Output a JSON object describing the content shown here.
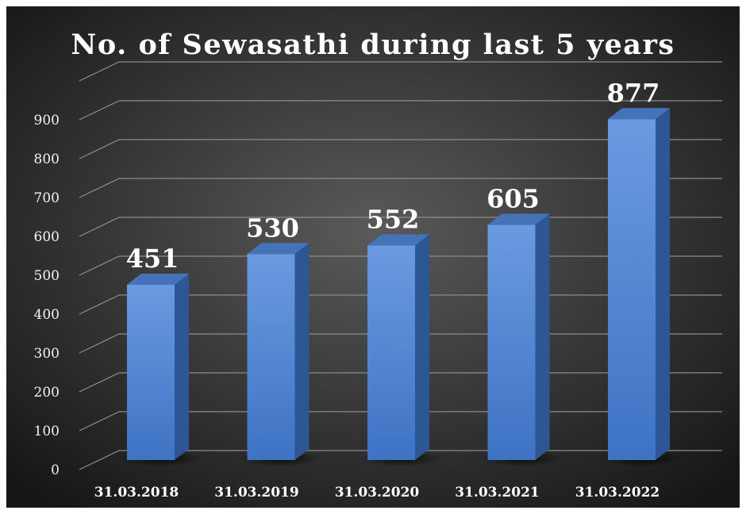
{
  "chart_data": {
    "type": "bar",
    "title": "No. of Sewasathi during last 5 years",
    "categories": [
      "31.03.2018",
      "31.03.2019",
      "31.03.2020",
      "31.03.2021",
      "31.03.2022"
    ],
    "values": [
      451,
      530,
      552,
      605,
      877
    ],
    "color": "#4f85d2",
    "ylim": [
      0,
      1000
    ],
    "yticks": [
      0,
      100,
      200,
      300,
      400,
      500,
      600,
      700,
      800,
      900
    ],
    "grid": true
  }
}
